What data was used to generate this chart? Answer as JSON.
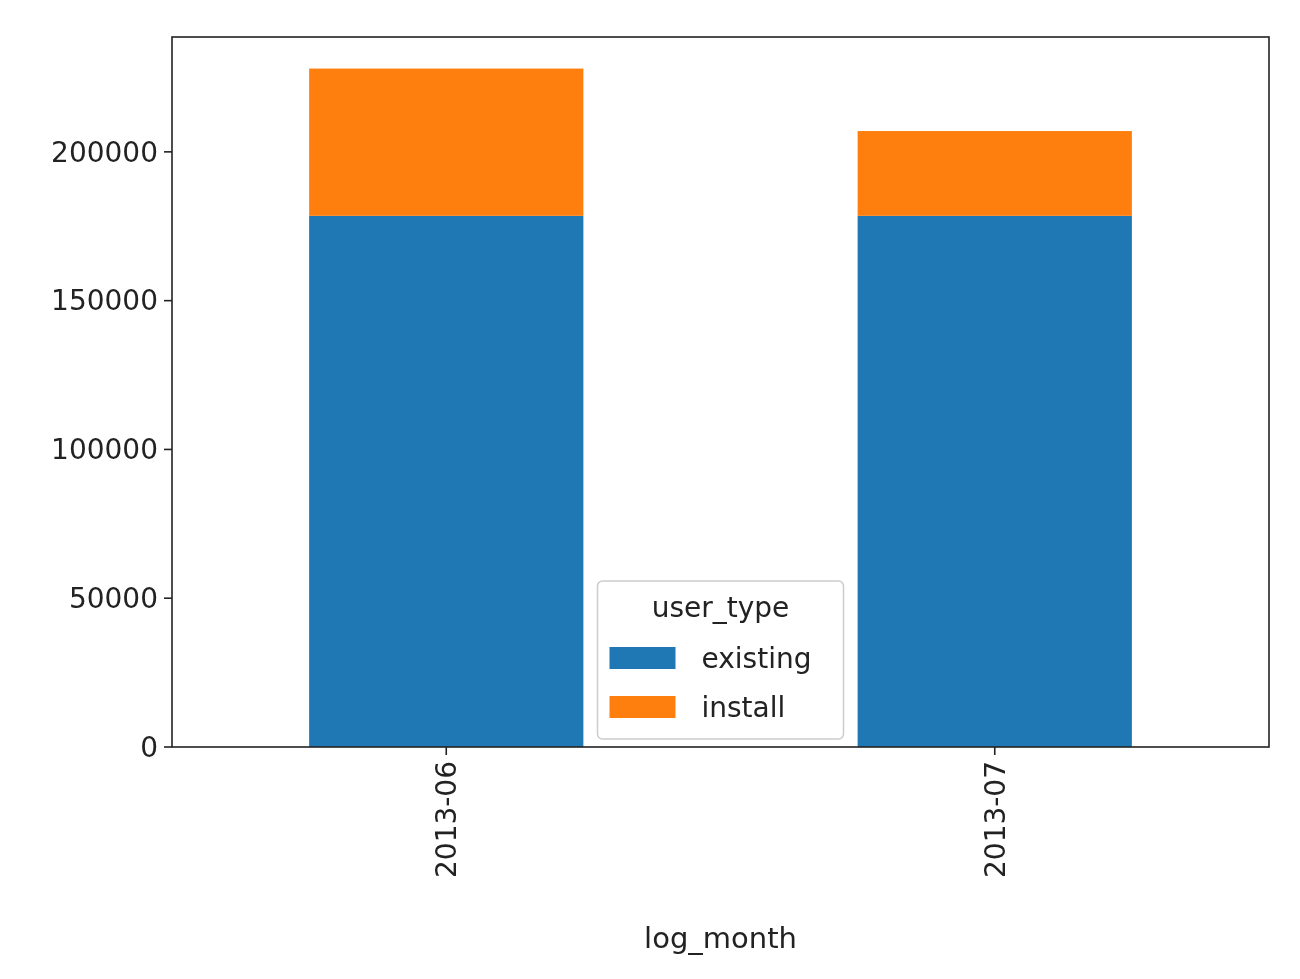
{
  "chart_data": {
    "type": "bar",
    "stacked": true,
    "xlabel": "log_month",
    "legend_title": "user_type",
    "legend": "bottom",
    "categories": [
      "2013-06",
      "2013-07"
    ],
    "series": [
      {
        "name": "existing",
        "color": "#1f77b4",
        "values": [
          178500,
          178500
        ]
      },
      {
        "name": "install",
        "color": "#ff7f0e",
        "values": [
          49500,
          28500
        ]
      }
    ],
    "ylim": [
      0,
      238600
    ],
    "yticks": [
      0,
      50000,
      100000,
      150000,
      200000
    ],
    "grid": false
  }
}
